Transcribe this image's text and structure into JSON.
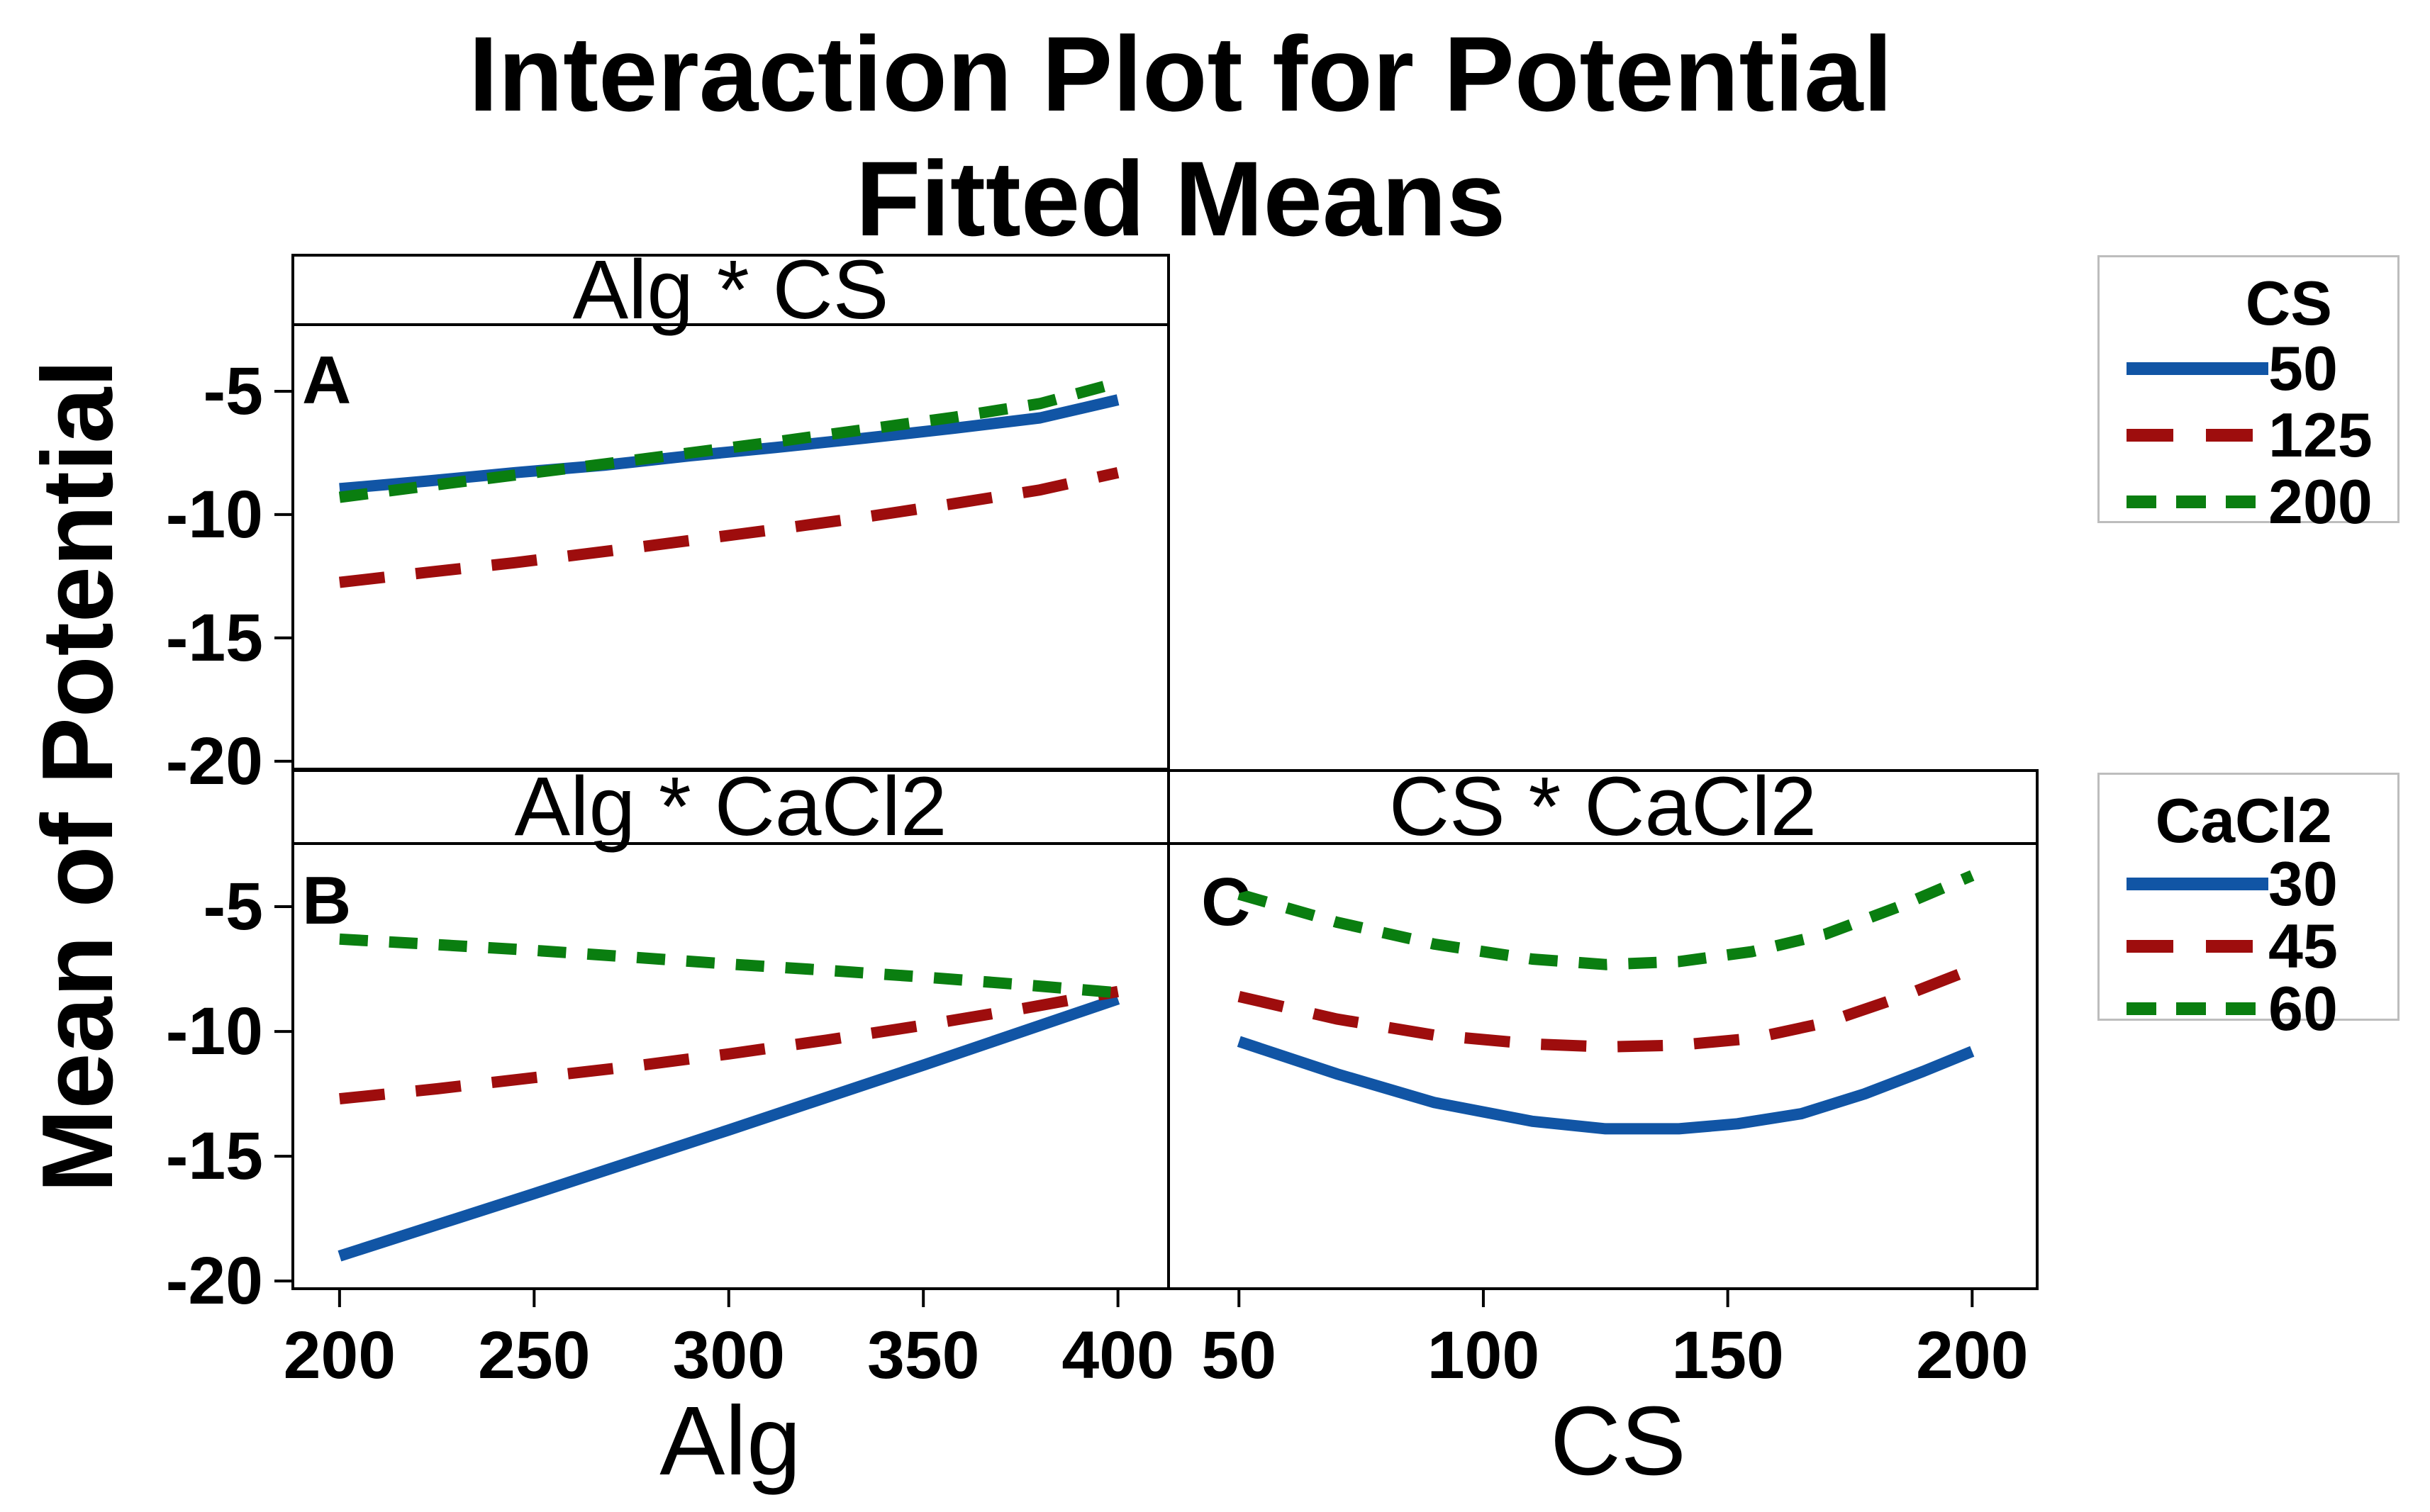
{
  "title": {
    "line1": "Interaction Plot for Potential",
    "line2": "Fitted Means"
  },
  "y_axis_label": "Mean of Potential",
  "colors": {
    "blue": "#1155A5",
    "red": "#9E0D0D",
    "green": "#0A7E10",
    "frame": "#000000",
    "legend_border": "#BDBDBD",
    "text": "#000000"
  },
  "legends": [
    {
      "title": "CS",
      "entries": [
        {
          "label": "50",
          "color": "blue",
          "style": "solid"
        },
        {
          "label": "125",
          "color": "red",
          "style": "longdash"
        },
        {
          "label": "200",
          "color": "green",
          "style": "shortdash"
        }
      ]
    },
    {
      "title": "CaCl2",
      "entries": [
        {
          "label": "30",
          "color": "blue",
          "style": "solid"
        },
        {
          "label": "45",
          "color": "red",
          "style": "longdash"
        },
        {
          "label": "60",
          "color": "green",
          "style": "shortdash"
        }
      ]
    }
  ],
  "chart_data": [
    {
      "type": "line",
      "panel_label": "A",
      "title": "Alg * CS",
      "y_ticks": [
        -5,
        -10,
        -15,
        -20
      ],
      "xlim": [
        188,
        413
      ],
      "ylim": [
        -20.32,
        -2.3
      ],
      "series": [
        {
          "name": "50",
          "color": "blue",
          "style": "solid",
          "points": [
            [
              200,
              -8.95
            ],
            [
              222,
              -8.65
            ],
            [
              245,
              -8.3
            ],
            [
              268,
              -8.0
            ],
            [
              290,
              -7.62
            ],
            [
              312,
              -7.28
            ],
            [
              335,
              -6.9
            ],
            [
              358,
              -6.5
            ],
            [
              380,
              -6.08
            ],
            [
              400,
              -5.35
            ]
          ]
        },
        {
          "name": "125",
          "color": "red",
          "style": "longdash",
          "points": [
            [
              200,
              -12.75
            ],
            [
              222,
              -12.35
            ],
            [
              245,
              -11.95
            ],
            [
              268,
              -11.5
            ],
            [
              290,
              -11.05
            ],
            [
              312,
              -10.6
            ],
            [
              335,
              -10.1
            ],
            [
              358,
              -9.55
            ],
            [
              380,
              -9.0
            ],
            [
              400,
              -8.3
            ]
          ]
        },
        {
          "name": "200",
          "color": "green",
          "style": "shortdash",
          "points": [
            [
              200,
              -9.3
            ],
            [
              222,
              -8.85
            ],
            [
              245,
              -8.4
            ],
            [
              268,
              -7.95
            ],
            [
              290,
              -7.5
            ],
            [
              312,
              -7.05
            ],
            [
              335,
              -6.55
            ],
            [
              358,
              -6.05
            ],
            [
              380,
              -5.5
            ],
            [
              400,
              -4.65
            ]
          ]
        }
      ]
    },
    {
      "type": "line",
      "panel_label": "B",
      "title": "Alg * CaCl2",
      "x_variable": "Alg",
      "x_ticks": [
        200,
        250,
        300,
        350,
        400
      ],
      "y_ticks": [
        -5,
        -10,
        -15,
        -20
      ],
      "xlim": [
        188,
        413
      ],
      "ylim": [
        -20.31,
        -2.47
      ],
      "series": [
        {
          "name": "30",
          "color": "blue",
          "style": "solid",
          "points": [
            [
              200,
              -19.0
            ],
            [
              250,
              -16.5
            ],
            [
              300,
              -13.95
            ],
            [
              350,
              -11.35
            ],
            [
              400,
              -8.7
            ]
          ]
        },
        {
          "name": "45",
          "color": "red",
          "style": "longdash",
          "points": [
            [
              200,
              -12.7
            ],
            [
              225,
              -12.3
            ],
            [
              250,
              -11.85
            ],
            [
              275,
              -11.4
            ],
            [
              300,
              -10.9
            ],
            [
              325,
              -10.35
            ],
            [
              350,
              -9.75
            ],
            [
              375,
              -9.1
            ],
            [
              400,
              -8.4
            ]
          ]
        },
        {
          "name": "60",
          "color": "green",
          "style": "shortdash",
          "points": [
            [
              200,
              -6.3
            ],
            [
              225,
              -6.52
            ],
            [
              250,
              -6.75
            ],
            [
              275,
              -7.02
            ],
            [
              300,
              -7.3
            ],
            [
              325,
              -7.55
            ],
            [
              350,
              -7.82
            ],
            [
              375,
              -8.12
            ],
            [
              400,
              -8.45
            ]
          ]
        }
      ]
    },
    {
      "type": "line",
      "panel_label": "C",
      "title": "CS * CaCl2",
      "x_variable": "CS",
      "x_ticks": [
        50,
        100,
        150,
        200
      ],
      "y_ticks": [
        -5,
        -10,
        -15,
        -20
      ],
      "xlim": [
        35.6,
        213.3
      ],
      "ylim": [
        -20.31,
        -2.47
      ],
      "series": [
        {
          "name": "30",
          "color": "blue",
          "style": "solid",
          "points": [
            [
              50,
              -10.4
            ],
            [
              70,
              -11.7
            ],
            [
              90,
              -12.85
            ],
            [
              110,
              -13.6
            ],
            [
              125,
              -13.9
            ],
            [
              140,
              -13.9
            ],
            [
              152,
              -13.7
            ],
            [
              165,
              -13.3
            ],
            [
              178,
              -12.5
            ],
            [
              190,
              -11.6
            ],
            [
              200,
              -10.8
            ]
          ]
        },
        {
          "name": "45",
          "color": "red",
          "style": "longdash",
          "points": [
            [
              50,
              -8.6
            ],
            [
              70,
              -9.5
            ],
            [
              90,
              -10.15
            ],
            [
              110,
              -10.5
            ],
            [
              125,
              -10.62
            ],
            [
              140,
              -10.55
            ],
            [
              155,
              -10.28
            ],
            [
              170,
              -9.65
            ],
            [
              185,
              -8.65
            ],
            [
              200,
              -7.5
            ]
          ]
        },
        {
          "name": "60",
          "color": "green",
          "style": "shortdash",
          "points": [
            [
              50,
              -4.5
            ],
            [
              70,
              -5.62
            ],
            [
              90,
              -6.5
            ],
            [
              110,
              -7.1
            ],
            [
              125,
              -7.32
            ],
            [
              140,
              -7.2
            ],
            [
              155,
              -6.8
            ],
            [
              170,
              -6.1
            ],
            [
              185,
              -5.0
            ],
            [
              200,
              -3.75
            ]
          ]
        }
      ]
    }
  ]
}
